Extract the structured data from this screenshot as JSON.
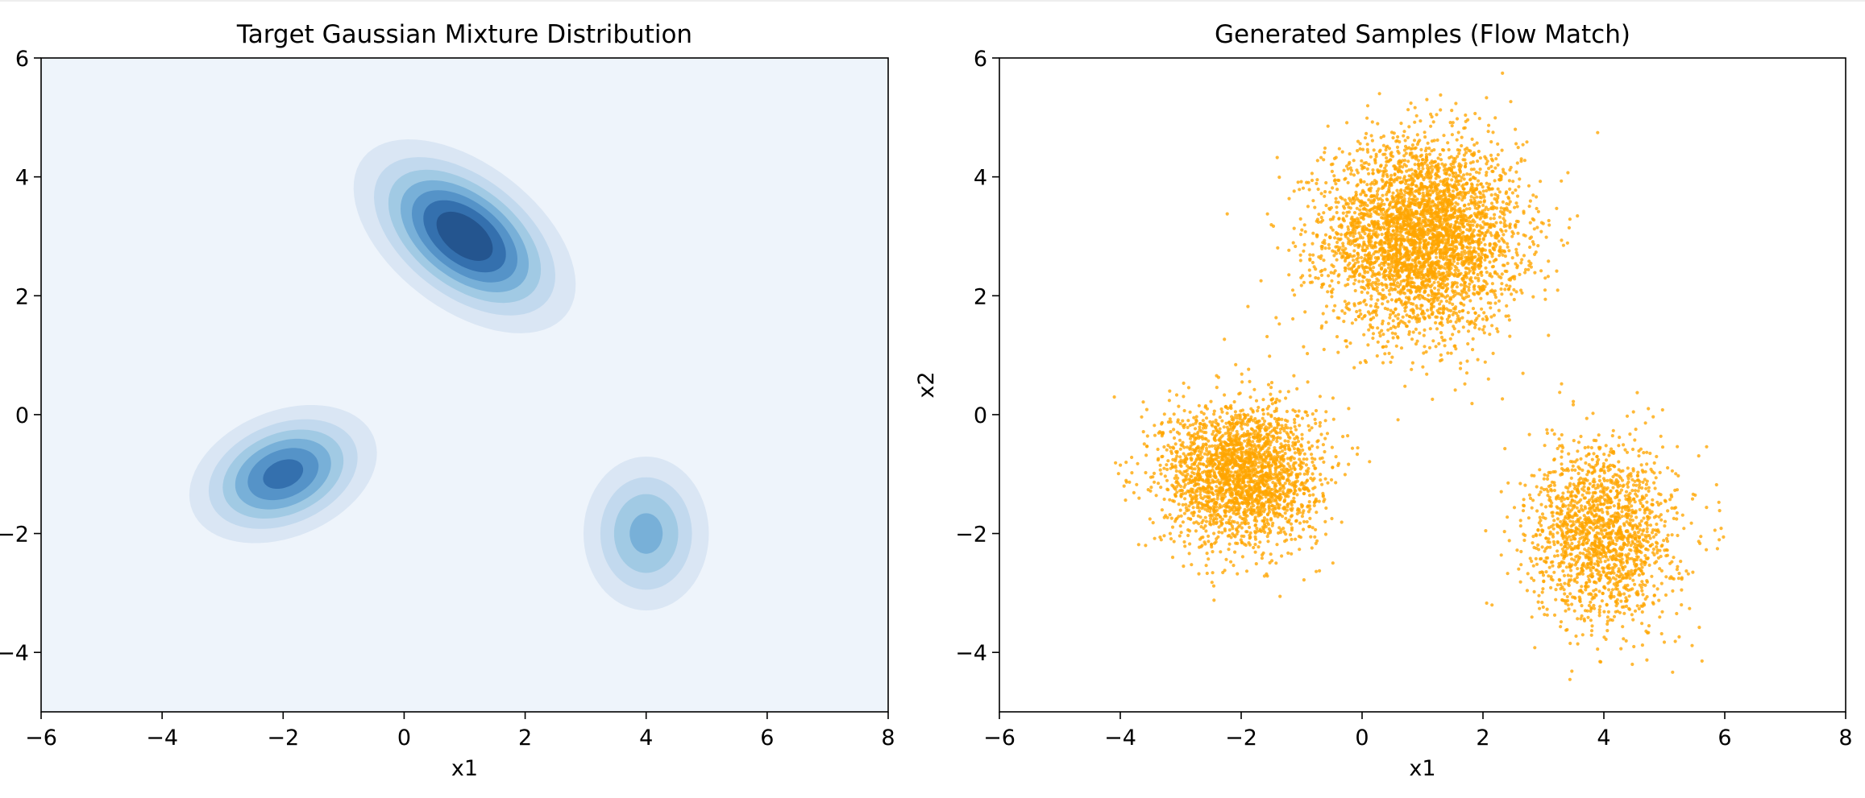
{
  "chart_data": [
    {
      "type": "contour",
      "title": "Target Gaussian Mixture Distribution",
      "xlabel": "x1",
      "ylabel": "",
      "xlim": [
        -6,
        8
      ],
      "ylim": [
        -5,
        6
      ],
      "xticks": [
        -6,
        -4,
        -2,
        0,
        2,
        4,
        6,
        8
      ],
      "yticks": [
        -4,
        -2,
        0,
        2,
        4,
        6
      ],
      "xtick_labels": [
        "−6",
        "−4",
        "−2",
        "0",
        "2",
        "4",
        "6",
        "8"
      ],
      "ytick_labels": [
        "−4",
        "−2",
        "0",
        "2",
        "4",
        "6"
      ],
      "grid": false,
      "colormap": "Blues",
      "background_color": "#eef4fb",
      "components": [
        {
          "mean": [
            1,
            3
          ],
          "std": [
            0.9,
            0.8
          ],
          "corr": -0.5,
          "weight": 0.5
        },
        {
          "mean": [
            -2,
            -1
          ],
          "std": [
            0.8,
            0.6
          ],
          "corr": 0.3,
          "weight": 0.3
        },
        {
          "mean": [
            4,
            -2
          ],
          "std": [
            0.6,
            0.75
          ],
          "corr": 0,
          "weight": 0.2
        }
      ],
      "level_colors": [
        "#dae6f4",
        "#c2d9ee",
        "#a1cae4",
        "#78b0d8",
        "#5593c8",
        "#3470ae",
        "#24558f"
      ]
    },
    {
      "type": "scatter",
      "title": "Generated Samples (Flow Match)",
      "xlabel": "x1",
      "ylabel": "x2",
      "xlim": [
        -6,
        8
      ],
      "ylim": [
        -5,
        6
      ],
      "xticks": [
        -6,
        -4,
        -2,
        0,
        2,
        4,
        6,
        8
      ],
      "yticks": [
        -4,
        -2,
        0,
        2,
        4,
        6
      ],
      "xtick_labels": [
        "−6",
        "−4",
        "−2",
        "0",
        "2",
        "4",
        "6",
        "8"
      ],
      "ytick_labels": [
        "−4",
        "−2",
        "0",
        "2",
        "4",
        "6"
      ],
      "grid": false,
      "color": "#ffa500",
      "series": [
        {
          "center": [
            1,
            3
          ],
          "std": [
            0.8,
            0.8
          ],
          "count": 3800
        },
        {
          "center": [
            -2,
            -1
          ],
          "std": [
            0.65,
            0.6
          ],
          "count": 2400
        },
        {
          "center": [
            4,
            -2
          ],
          "std": [
            0.6,
            0.75
          ],
          "count": 1700
        }
      ]
    }
  ]
}
